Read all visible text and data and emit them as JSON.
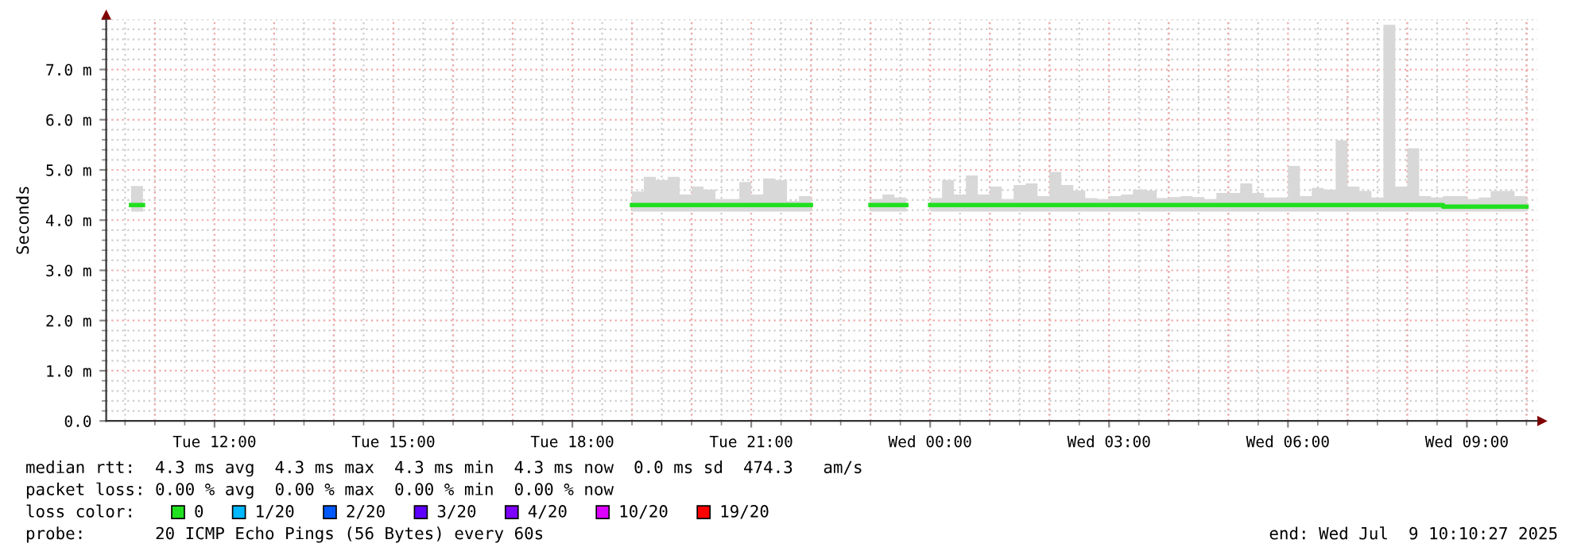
{
  "chart_data": {
    "type": "step",
    "ylabel": "Seconds",
    "xlim": [
      "2025-07-08T10:11",
      "2025-07-09T10:11"
    ],
    "xticks": [
      {
        "value": "2025-07-08T12:00",
        "label": "Tue 12:00"
      },
      {
        "value": "2025-07-08T15:00",
        "label": "Tue 15:00"
      },
      {
        "value": "2025-07-08T18:00",
        "label": "Tue 18:00"
      },
      {
        "value": "2025-07-08T21:00",
        "label": "Tue 21:00"
      },
      {
        "value": "2025-07-09T00:00",
        "label": "Wed 00:00"
      },
      {
        "value": "2025-07-09T03:00",
        "label": "Wed 03:00"
      },
      {
        "value": "2025-07-09T06:00",
        "label": "Wed 06:00"
      },
      {
        "value": "2025-07-09T09:00",
        "label": "Wed 09:00"
      }
    ],
    "ylim": [
      0,
      8.0
    ],
    "yticks": [
      {
        "value": 0,
        "label": "0.0"
      },
      {
        "value": 1,
        "label": "1.0 m"
      },
      {
        "value": 2,
        "label": "2.0 m"
      },
      {
        "value": 3,
        "label": "3.0 m"
      },
      {
        "value": 4,
        "label": "4.0 m"
      },
      {
        "value": 5,
        "label": "5.0 m"
      },
      {
        "value": 6,
        "label": "6.0 m"
      },
      {
        "value": 7,
        "label": "7.0 m"
      }
    ],
    "grid": true,
    "legend": "bottom",
    "legend_title": "loss color:",
    "x": [
      "2025-07-08T10:36",
      "2025-07-08T10:48",
      "2025-07-08T19:00",
      "2025-07-08T19:12",
      "2025-07-08T19:24",
      "2025-07-08T19:36",
      "2025-07-08T19:48",
      "2025-07-08T20:00",
      "2025-07-08T20:12",
      "2025-07-08T20:24",
      "2025-07-08T20:36",
      "2025-07-08T20:48",
      "2025-07-08T21:00",
      "2025-07-08T21:12",
      "2025-07-08T21:24",
      "2025-07-08T21:36",
      "2025-07-08T21:48",
      "2025-07-08T22:00",
      "2025-07-08T23:00",
      "2025-07-08T23:12",
      "2025-07-08T23:24",
      "2025-07-08T23:36",
      "2025-07-09T00:00",
      "2025-07-09T00:12",
      "2025-07-09T00:24",
      "2025-07-09T00:36",
      "2025-07-09T00:48",
      "2025-07-09T01:00",
      "2025-07-09T01:12",
      "2025-07-09T01:24",
      "2025-07-09T01:36",
      "2025-07-09T01:48",
      "2025-07-09T02:00",
      "2025-07-09T02:12",
      "2025-07-09T02:24",
      "2025-07-09T02:36",
      "2025-07-09T02:48",
      "2025-07-09T03:00",
      "2025-07-09T03:12",
      "2025-07-09T03:24",
      "2025-07-09T03:36",
      "2025-07-09T03:48",
      "2025-07-09T04:00",
      "2025-07-09T04:12",
      "2025-07-09T04:24",
      "2025-07-09T04:36",
      "2025-07-09T04:48",
      "2025-07-09T05:00",
      "2025-07-09T05:12",
      "2025-07-09T05:24",
      "2025-07-09T05:36",
      "2025-07-09T05:48",
      "2025-07-09T06:00",
      "2025-07-09T06:12",
      "2025-07-09T06:24",
      "2025-07-09T06:36",
      "2025-07-09T06:48",
      "2025-07-09T07:00",
      "2025-07-09T07:12",
      "2025-07-09T07:24",
      "2025-07-09T07:36",
      "2025-07-09T07:48",
      "2025-07-09T08:00",
      "2025-07-09T08:12",
      "2025-07-09T08:24",
      "2025-07-09T08:36",
      "2025-07-09T08:48",
      "2025-07-09T09:00",
      "2025-07-09T09:12",
      "2025-07-09T09:24",
      "2025-07-09T09:36",
      "2025-07-09T09:48",
      "2025-07-09T10:00"
    ],
    "series": [
      {
        "name": "0",
        "color": "#20e020",
        "values": [
          4.3,
          null,
          4.3,
          4.3,
          4.3,
          4.3,
          4.3,
          4.3,
          4.3,
          4.3,
          4.3,
          4.3,
          4.3,
          4.3,
          4.3,
          4.3,
          4.3,
          null,
          4.3,
          4.3,
          4.3,
          null,
          4.3,
          4.3,
          4.3,
          4.3,
          4.3,
          4.3,
          4.3,
          4.3,
          4.3,
          4.3,
          4.3,
          4.3,
          4.3,
          4.3,
          4.3,
          4.3,
          4.3,
          4.3,
          4.3,
          4.3,
          4.3,
          4.3,
          4.3,
          4.3,
          4.3,
          4.3,
          4.3,
          4.3,
          4.3,
          4.3,
          4.3,
          4.3,
          4.3,
          4.3,
          4.3,
          4.3,
          4.3,
          4.3,
          4.3,
          4.3,
          4.3,
          4.3,
          4.3,
          4.27,
          4.27,
          4.27,
          4.27,
          4.27,
          4.27,
          4.27,
          4.27
        ],
        "lower": [
          4.17,
          null,
          4.17,
          4.17,
          4.17,
          4.17,
          4.17,
          4.17,
          4.17,
          4.17,
          4.17,
          4.17,
          4.17,
          4.17,
          4.17,
          4.17,
          4.17,
          null,
          4.17,
          4.17,
          4.17,
          null,
          4.17,
          4.17,
          4.17,
          4.17,
          4.17,
          4.17,
          4.17,
          4.17,
          4.17,
          4.17,
          4.17,
          4.17,
          4.17,
          4.17,
          4.17,
          4.17,
          4.17,
          4.17,
          4.17,
          4.17,
          4.17,
          4.17,
          4.17,
          4.17,
          4.17,
          4.17,
          4.17,
          4.17,
          4.17,
          4.17,
          4.17,
          4.17,
          4.17,
          4.17,
          4.17,
          4.17,
          4.17,
          4.17,
          4.17,
          4.17,
          4.17,
          4.17,
          4.17,
          4.17,
          4.17,
          4.17,
          4.17,
          4.17,
          4.17,
          4.17,
          4.17
        ],
        "upper": [
          4.68,
          null,
          4.57,
          4.86,
          4.8,
          4.86,
          4.51,
          4.67,
          4.61,
          4.42,
          4.42,
          4.76,
          4.51,
          4.83,
          4.8,
          4.38,
          4.48,
          null,
          4.42,
          4.51,
          4.45,
          null,
          4.44,
          4.8,
          4.51,
          4.89,
          4.51,
          4.67,
          4.42,
          4.7,
          4.73,
          4.48,
          4.96,
          4.7,
          4.59,
          4.44,
          4.42,
          4.48,
          4.51,
          4.61,
          4.59,
          4.44,
          4.46,
          4.48,
          4.46,
          4.42,
          4.54,
          4.54,
          4.73,
          4.54,
          4.45,
          4.45,
          5.08,
          4.48,
          4.64,
          4.61,
          5.59,
          4.67,
          4.58,
          4.45,
          7.89,
          4.67,
          5.43,
          4.48,
          4.45,
          4.48,
          4.48,
          4.42,
          4.45,
          4.58,
          4.58,
          4.48,
          4.48
        ]
      },
      {
        "name": "1/20",
        "color": "#00b8ff",
        "values": [
          null,
          null,
          null,
          null,
          null,
          null,
          null,
          null,
          null,
          null,
          null,
          null,
          null,
          null,
          null,
          null,
          null,
          null,
          null,
          null,
          null,
          null,
          null,
          null,
          null,
          null,
          null,
          null,
          null,
          null,
          null,
          null,
          null,
          null,
          null,
          null,
          null,
          null,
          null,
          null,
          null,
          null,
          null,
          null,
          null,
          null,
          null,
          null,
          null,
          null,
          null,
          null,
          null,
          null,
          null,
          null,
          null,
          null,
          null,
          null,
          null,
          null,
          null,
          null,
          null,
          null,
          null,
          null,
          null,
          null,
          null,
          null,
          null
        ]
      },
      {
        "name": "2/20",
        "color": "#0059ff",
        "values": [
          null,
          null,
          null,
          null,
          null,
          null,
          null,
          null,
          null,
          null,
          null,
          null,
          null,
          null,
          null,
          null,
          null,
          null,
          null,
          null,
          null,
          null,
          null,
          null,
          null,
          null,
          null,
          null,
          null,
          null,
          null,
          null,
          null,
          null,
          null,
          null,
          null,
          null,
          null,
          null,
          null,
          null,
          null,
          null,
          null,
          null,
          null,
          null,
          null,
          null,
          null,
          null,
          null,
          null,
          null,
          null,
          null,
          null,
          null,
          null,
          null,
          null,
          null,
          null,
          null,
          null,
          null,
          null,
          null,
          null,
          null,
          null,
          null
        ]
      },
      {
        "name": "3/20",
        "color": "#5e00ff",
        "values": [
          null,
          null,
          null,
          null,
          null,
          null,
          null,
          null,
          null,
          null,
          null,
          null,
          null,
          null,
          null,
          null,
          null,
          null,
          null,
          null,
          null,
          null,
          null,
          null,
          null,
          null,
          null,
          null,
          null,
          null,
          null,
          null,
          null,
          null,
          null,
          null,
          null,
          null,
          null,
          null,
          null,
          null,
          null,
          null,
          null,
          null,
          null,
          null,
          null,
          null,
          null,
          null,
          null,
          null,
          null,
          null,
          null,
          null,
          null,
          null,
          null,
          null,
          null,
          null,
          null,
          null,
          null,
          null,
          null,
          null,
          null,
          null,
          null
        ]
      },
      {
        "name": "4/20",
        "color": "#7e00ff",
        "values": [
          null,
          null,
          null,
          null,
          null,
          null,
          null,
          null,
          null,
          null,
          null,
          null,
          null,
          null,
          null,
          null,
          null,
          null,
          null,
          null,
          null,
          null,
          null,
          null,
          null,
          null,
          null,
          null,
          null,
          null,
          null,
          null,
          null,
          null,
          null,
          null,
          null,
          null,
          null,
          null,
          null,
          null,
          null,
          null,
          null,
          null,
          null,
          null,
          null,
          null,
          null,
          null,
          null,
          null,
          null,
          null,
          null,
          null,
          null,
          null,
          null,
          null,
          null,
          null,
          null,
          null,
          null,
          null,
          null,
          null,
          null,
          null,
          null
        ]
      },
      {
        "name": "10/20",
        "color": "#dd00ff",
        "values": [
          null,
          null,
          null,
          null,
          null,
          null,
          null,
          null,
          null,
          null,
          null,
          null,
          null,
          null,
          null,
          null,
          null,
          null,
          null,
          null,
          null,
          null,
          null,
          null,
          null,
          null,
          null,
          null,
          null,
          null,
          null,
          null,
          null,
          null,
          null,
          null,
          null,
          null,
          null,
          null,
          null,
          null,
          null,
          null,
          null,
          null,
          null,
          null,
          null,
          null,
          null,
          null,
          null,
          null,
          null,
          null,
          null,
          null,
          null,
          null,
          null,
          null,
          null,
          null,
          null,
          null,
          null,
          null,
          null,
          null,
          null,
          null,
          null
        ]
      },
      {
        "name": "19/20",
        "color": "#ff0000",
        "values": [
          null,
          null,
          null,
          null,
          null,
          null,
          null,
          null,
          null,
          null,
          null,
          null,
          null,
          null,
          null,
          null,
          null,
          null,
          null,
          null,
          null,
          null,
          null,
          null,
          null,
          null,
          null,
          null,
          null,
          null,
          null,
          null,
          null,
          null,
          null,
          null,
          null,
          null,
          null,
          null,
          null,
          null,
          null,
          null,
          null,
          null,
          null,
          null,
          null,
          null,
          null,
          null,
          null,
          null,
          null,
          null,
          null,
          null,
          null,
          null,
          null,
          null,
          null,
          null,
          null,
          null,
          null,
          null,
          null,
          null,
          null,
          null,
          null
        ]
      }
    ],
    "annotations": [
      "median rtt:  4.3 ms avg  4.3 ms max  4.3 ms min  4.3 ms now  0.0 ms sd  474.3   am/s",
      "packet loss: 0.00 % avg  0.00 % max  0.00 % min  0.00 % now",
      "probe:       20 ICMP Echo Pings (56 Bytes) every 60s",
      "end: Wed Jul  9 10:10:27 2025"
    ]
  }
}
